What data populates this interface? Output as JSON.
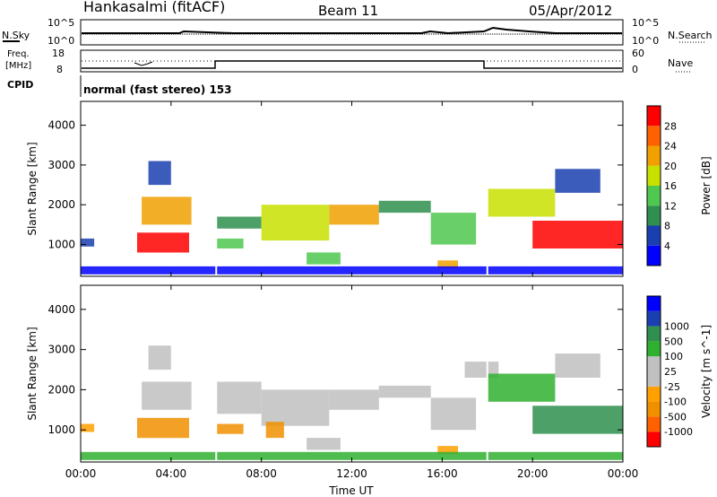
{
  "header": {
    "station": "Hankasalmi (fitACF)",
    "beam": "Beam 11",
    "date": "05/Apr/2012"
  },
  "sky_panel": {
    "left_label": "N.Sky",
    "right_label": "N.Search",
    "top_tick": "10^5",
    "bottom_tick": "10^0"
  },
  "freq_panel": {
    "left_label_1": "Freq.",
    "left_label_2": "[MHz]",
    "right_label": "Nave",
    "left_ticks": [
      "18",
      "8"
    ],
    "right_ticks": [
      "60",
      "0"
    ]
  },
  "cpid": {
    "label": "CPID",
    "text": "normal (fast stereo) 153"
  },
  "colors": {
    "power_scale": [
      "#0000ff",
      "#1a3fb0",
      "#2f8f4f",
      "#4fc84f",
      "#c8e000",
      "#f0a000",
      "#ff6000",
      "#ff0000"
    ],
    "velocity_scale": [
      "#ff0000",
      "#ff6000",
      "#f09000",
      "#ffa000",
      "#c0c0c0",
      "#c0c0c0",
      "#30b030",
      "#2f8f4f",
      "#1a3fb0",
      "#0000ff"
    ]
  },
  "chart_data": [
    {
      "type": "heatmap",
      "name": "power",
      "xlabel": "",
      "ylabel": "Slant Range [km]",
      "x_ticks": [
        "00:00",
        "04:00",
        "08:00",
        "12:00",
        "16:00",
        "20:00",
        "00:00"
      ],
      "y_ticks": [
        "1000",
        "2000",
        "3000",
        "4000"
      ],
      "ylim": [
        200,
        4600
      ],
      "colorbar": {
        "label": "Power [dB]",
        "ticks": [
          "4",
          "8",
          "12",
          "16",
          "20",
          "24",
          "28"
        ]
      },
      "regions": [
        {
          "t0": 0.0,
          "t1": 0.6,
          "r0": 950,
          "r1": 1150,
          "level": 1
        },
        {
          "t0": 2.5,
          "t1": 4.8,
          "r0": 800,
          "r1": 1300,
          "level": 7
        },
        {
          "t0": 2.7,
          "t1": 4.9,
          "r0": 1500,
          "r1": 2200,
          "level": 5
        },
        {
          "t0": 3.0,
          "t1": 4.0,
          "r0": 2500,
          "r1": 3100,
          "level": 1
        },
        {
          "t0": 6.0,
          "t1": 7.2,
          "r0": 900,
          "r1": 1150,
          "level": 3
        },
        {
          "t0": 6.0,
          "t1": 8.0,
          "r0": 1400,
          "r1": 1700,
          "level": 2
        },
        {
          "t0": 8.0,
          "t1": 11.0,
          "r0": 1100,
          "r1": 2000,
          "level": 4
        },
        {
          "t0": 11.0,
          "t1": 13.2,
          "r0": 1500,
          "r1": 2000,
          "level": 5
        },
        {
          "t0": 13.2,
          "t1": 15.5,
          "r0": 1800,
          "r1": 2100,
          "level": 2
        },
        {
          "t0": 10.0,
          "t1": 11.5,
          "r0": 500,
          "r1": 800,
          "level": 3
        },
        {
          "t0": 15.8,
          "t1": 16.7,
          "r0": 400,
          "r1": 600,
          "level": 5
        },
        {
          "t0": 15.5,
          "t1": 17.5,
          "r0": 1000,
          "r1": 1800,
          "level": 3
        },
        {
          "t0": 18.0,
          "t1": 21.0,
          "r0": 1700,
          "r1": 2400,
          "level": 4
        },
        {
          "t0": 20.0,
          "t1": 24.0,
          "r0": 900,
          "r1": 1600,
          "level": 7
        },
        {
          "t0": 21.0,
          "t1": 23.0,
          "r0": 2300,
          "r1": 2900,
          "level": 1
        },
        {
          "t0": 0.0,
          "t1": 24.0,
          "r0": 250,
          "r1": 450,
          "level": 0
        }
      ]
    },
    {
      "type": "heatmap",
      "name": "velocity",
      "xlabel": "Time UT",
      "ylabel": "Slant Range [km]",
      "x_ticks": [
        "00:00",
        "04:00",
        "08:00",
        "12:00",
        "16:00",
        "20:00",
        "00:00"
      ],
      "y_ticks": [
        "1000",
        "2000",
        "3000",
        "4000"
      ],
      "ylim": [
        200,
        4600
      ],
      "colorbar": {
        "label": "Velocity [m s^-1]",
        "ticks": [
          "-1000",
          "-500",
          "-100",
          "-25",
          "25",
          "100",
          "500",
          "1000"
        ]
      },
      "regions": [
        {
          "t0": 0.0,
          "t1": 0.6,
          "r0": 950,
          "r1": 1150,
          "level": 3
        },
        {
          "t0": 2.5,
          "t1": 4.8,
          "r0": 800,
          "r1": 1300,
          "level": 2
        },
        {
          "t0": 2.7,
          "t1": 4.9,
          "r0": 1500,
          "r1": 2200,
          "level": 4
        },
        {
          "t0": 3.0,
          "t1": 4.0,
          "r0": 2500,
          "r1": 3100,
          "level": 5
        },
        {
          "t0": 6.0,
          "t1": 7.2,
          "r0": 900,
          "r1": 1150,
          "level": 2
        },
        {
          "t0": 6.0,
          "t1": 8.0,
          "r0": 1400,
          "r1": 2200,
          "level": 4
        },
        {
          "t0": 8.0,
          "t1": 11.0,
          "r0": 1100,
          "r1": 2000,
          "level": 4
        },
        {
          "t0": 8.2,
          "t1": 9.0,
          "r0": 800,
          "r1": 1200,
          "level": 2
        },
        {
          "t0": 11.0,
          "t1": 13.2,
          "r0": 1500,
          "r1": 2000,
          "level": 4
        },
        {
          "t0": 13.2,
          "t1": 15.5,
          "r0": 1800,
          "r1": 2100,
          "level": 4
        },
        {
          "t0": 10.0,
          "t1": 11.5,
          "r0": 500,
          "r1": 800,
          "level": 4
        },
        {
          "t0": 15.8,
          "t1": 16.7,
          "r0": 400,
          "r1": 600,
          "level": 3
        },
        {
          "t0": 15.5,
          "t1": 17.5,
          "r0": 1000,
          "r1": 1800,
          "level": 4
        },
        {
          "t0": 17.0,
          "t1": 18.5,
          "r0": 2300,
          "r1": 2700,
          "level": 4
        },
        {
          "t0": 18.0,
          "t1": 21.0,
          "r0": 1700,
          "r1": 2400,
          "level": 6
        },
        {
          "t0": 20.0,
          "t1": 24.0,
          "r0": 900,
          "r1": 1600,
          "level": 7
        },
        {
          "t0": 21.0,
          "t1": 23.0,
          "r0": 2300,
          "r1": 2900,
          "level": 4
        },
        {
          "t0": 0.0,
          "t1": 24.0,
          "r0": 250,
          "r1": 450,
          "level": 6
        }
      ]
    }
  ]
}
